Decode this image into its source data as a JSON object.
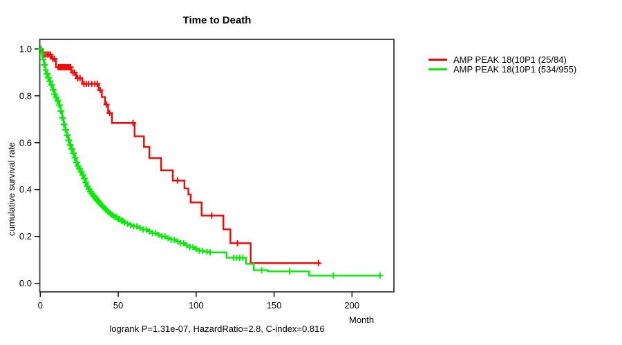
{
  "title": "Time to Death",
  "y_axis_label": "cumulative survival rate",
  "x_axis_label": "Month",
  "footnote": "logrank P=1.31e-07, HazardRatio=2.8, C-index=0.816",
  "legend": {
    "items": [
      {
        "label": "AMP PEAK 18(10P1 (25/84)",
        "color": "#ff0000"
      },
      {
        "label": "AMP PEAK 18(10P1 (534/955)",
        "color": "#00ee00"
      }
    ]
  },
  "chart_data": {
    "type": "line",
    "subtype": "kaplan-meier-step",
    "title": "Time to Death",
    "xlabel": "Month",
    "ylabel": "cumulative survival rate",
    "xlim": [
      0,
      227
    ],
    "ylim": [
      0,
      1.04
    ],
    "grid": false,
    "legend_position": "right-outside",
    "x_ticks": [
      0,
      50,
      100,
      150,
      200
    ],
    "x_tick_labels": [
      "0",
      "50",
      "100",
      "150",
      "200"
    ],
    "y_ticks": [
      0,
      0.2,
      0.4,
      0.6,
      0.8,
      1
    ],
    "y_tick_labels": [
      "0.0",
      "0.2",
      "0.4",
      "0.6",
      "0.8",
      "1.0"
    ],
    "annotation": "logrank P=1.31e-07, HazardRatio=2.8, C-index=0.816",
    "series": [
      {
        "name": "AMP PEAK 18(10P1 (25/84)",
        "color": "#ff0000",
        "end_month": 179.5,
        "points": [
          [
            0,
            1.0
          ],
          [
            1.5,
            0.976
          ],
          [
            7,
            0.958
          ],
          [
            10,
            0.922
          ],
          [
            20,
            0.899
          ],
          [
            23,
            0.875
          ],
          [
            27,
            0.851
          ],
          [
            37.5,
            0.824
          ],
          [
            39.5,
            0.795
          ],
          [
            41.5,
            0.763
          ],
          [
            43.5,
            0.727
          ],
          [
            46,
            0.684
          ],
          [
            60.5,
            0.627
          ],
          [
            66.5,
            0.582
          ],
          [
            70,
            0.534
          ],
          [
            77.5,
            0.482
          ],
          [
            85,
            0.438
          ],
          [
            92.5,
            0.405
          ],
          [
            95,
            0.379
          ],
          [
            96.5,
            0.345
          ],
          [
            103.5,
            0.289
          ],
          [
            117.5,
            0.23
          ],
          [
            122,
            0.171
          ],
          [
            135,
            0.086
          ]
        ],
        "censor_months": [
          2.5,
          3.5,
          4.5,
          5.5,
          6.5,
          8,
          9,
          11.5,
          12.3,
          13.1,
          13.9,
          14.7,
          15.5,
          16.3,
          17.1,
          17.9,
          18.7,
          19.5,
          21,
          22,
          24,
          25.5,
          28,
          29.5,
          31,
          33,
          35,
          36.5,
          38.5,
          42.5,
          44.5,
          59.5,
          88,
          110,
          126.5,
          178.5
        ]
      },
      {
        "name": "AMP PEAK 18(10P1 (534/955)",
        "color": "#00ee00",
        "end_month": 218.5,
        "points": [
          [
            0,
            1.0
          ],
          [
            0.8,
            0.978
          ],
          [
            1.6,
            0.955
          ],
          [
            2.4,
            0.932
          ],
          [
            3.2,
            0.91
          ],
          [
            4,
            0.893
          ],
          [
            5,
            0.877
          ],
          [
            6,
            0.862
          ],
          [
            7,
            0.846
          ],
          [
            8,
            0.826
          ],
          [
            9,
            0.807
          ],
          [
            10,
            0.792
          ],
          [
            11,
            0.778
          ],
          [
            12,
            0.76
          ],
          [
            13,
            0.735
          ],
          [
            14,
            0.706
          ],
          [
            15,
            0.678
          ],
          [
            16,
            0.655
          ],
          [
            17,
            0.632
          ],
          [
            18,
            0.61
          ],
          [
            19,
            0.59
          ],
          [
            20,
            0.573
          ],
          [
            21,
            0.555
          ],
          [
            22,
            0.536
          ],
          [
            23,
            0.516
          ],
          [
            24,
            0.5
          ],
          [
            25,
            0.488
          ],
          [
            26,
            0.475
          ],
          [
            27,
            0.462
          ],
          [
            28,
            0.447
          ],
          [
            29,
            0.43
          ],
          [
            30,
            0.414
          ],
          [
            31,
            0.401
          ],
          [
            32,
            0.391
          ],
          [
            33,
            0.382
          ],
          [
            34,
            0.373
          ],
          [
            35,
            0.365
          ],
          [
            36,
            0.357
          ],
          [
            37,
            0.35
          ],
          [
            38,
            0.342
          ],
          [
            39,
            0.335
          ],
          [
            40,
            0.329
          ],
          [
            41,
            0.322
          ],
          [
            42,
            0.316
          ],
          [
            43,
            0.309
          ],
          [
            44,
            0.302
          ],
          [
            45,
            0.297
          ],
          [
            46,
            0.292
          ],
          [
            47,
            0.287
          ],
          [
            48,
            0.282
          ],
          [
            50,
            0.274
          ],
          [
            52,
            0.267
          ],
          [
            54,
            0.26
          ],
          [
            56,
            0.254
          ],
          [
            58,
            0.248
          ],
          [
            60,
            0.243
          ],
          [
            63,
            0.236
          ],
          [
            66,
            0.229
          ],
          [
            69,
            0.222
          ],
          [
            72,
            0.214
          ],
          [
            75,
            0.207
          ],
          [
            78,
            0.2
          ],
          [
            81,
            0.193
          ],
          [
            84,
            0.186
          ],
          [
            87,
            0.179
          ],
          [
            90,
            0.171
          ],
          [
            93,
            0.162
          ],
          [
            96,
            0.154
          ],
          [
            99,
            0.147
          ],
          [
            102,
            0.139
          ],
          [
            105,
            0.135
          ],
          [
            109,
            0.132
          ],
          [
            119.5,
            0.109
          ],
          [
            132,
            0.083
          ],
          [
            137,
            0.056
          ],
          [
            146,
            0.051
          ],
          [
            172.5,
            0.033
          ]
        ],
        "censor_months": [
          0.5,
          1,
          1.5,
          2,
          2.5,
          3,
          3.5,
          4,
          4.5,
          5,
          5.5,
          6,
          6.5,
          7,
          7.5,
          8,
          8.5,
          9,
          9.5,
          10,
          10.5,
          11,
          11.5,
          12,
          12.5,
          13,
          13.5,
          14,
          14.5,
          15,
          15.5,
          16,
          16.5,
          17,
          17.5,
          18,
          18.5,
          19,
          19.5,
          20,
          20.5,
          21,
          21.5,
          22,
          22.5,
          23,
          23.5,
          24,
          24.5,
          25,
          25.5,
          26,
          26.5,
          27,
          27.5,
          28,
          28.5,
          29,
          29.5,
          30,
          30.5,
          31,
          31.5,
          32,
          32.5,
          33,
          33.5,
          34,
          34.5,
          35,
          35.5,
          36,
          36.5,
          37,
          37.5,
          38,
          38.5,
          39,
          40,
          41,
          42,
          43,
          44,
          45,
          46,
          47,
          48,
          49,
          50,
          51,
          52,
          53,
          54,
          56,
          58,
          60,
          62,
          64,
          66,
          68,
          70,
          72,
          74,
          76,
          78,
          80,
          82,
          84,
          86,
          88,
          90,
          92,
          94,
          96,
          98,
          100,
          102,
          104,
          107,
          109,
          124,
          126,
          128,
          130,
          142,
          160,
          188,
          218
        ]
      }
    ]
  }
}
